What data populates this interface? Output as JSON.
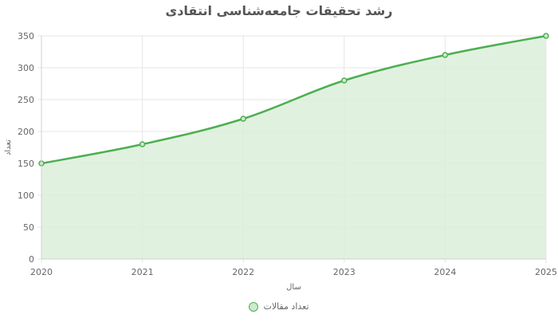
{
  "chart_data": {
    "type": "area",
    "title": "رشد تحقیقات جامعه‌شناسی انتقادی",
    "xlabel": "سال",
    "ylabel": "تعداد",
    "categories": [
      "2020",
      "2021",
      "2022",
      "2023",
      "2024",
      "2025"
    ],
    "series": [
      {
        "name": "تعداد مقالات",
        "values": [
          150,
          180,
          220,
          280,
          320,
          350
        ]
      }
    ],
    "ylim": [
      0,
      350
    ],
    "yticks": [
      0,
      50,
      100,
      150,
      200,
      250,
      300,
      350
    ],
    "grid": true,
    "legend_position": "bottom",
    "colors": {
      "line": "#4caf50",
      "fill": "#dcefda",
      "grid": "#e5e5e5"
    }
  }
}
